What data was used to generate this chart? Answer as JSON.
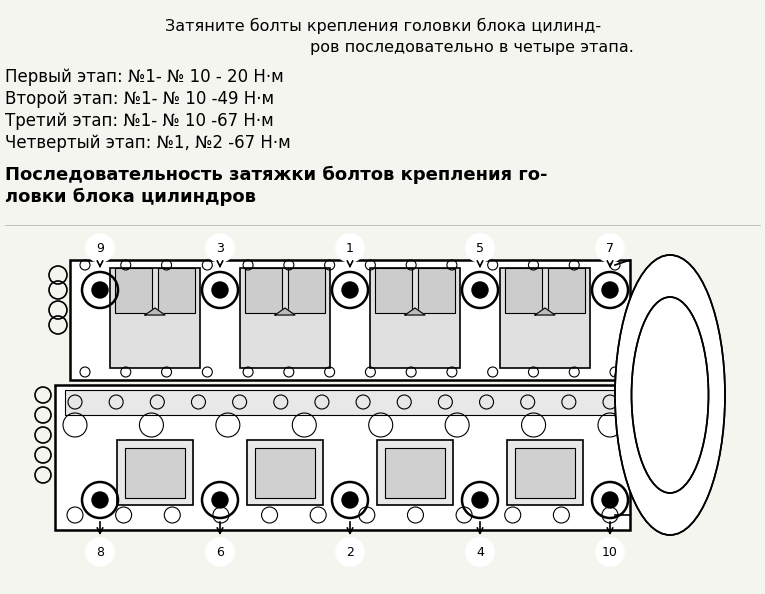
{
  "line1": "Затяните болты крепления головки блока цилинд-",
  "line2": "ров последовательно в четыре этапа.",
  "step1": "Первый этап: №1- № 10 - 20 Н·м",
  "step2": "Второй этап: №1- № 10 -49 Н·м",
  "step3": "Третий этап: №1- № 10 -67 Н·м",
  "step4": "Четвертый этап: №1, №2 -67 Н·м",
  "sub1": "Последовательность затяжки болтов крепления го-",
  "sub2": "ловки блока цилиндров",
  "top_nums": [
    "9",
    "3",
    "1",
    "5",
    "7"
  ],
  "bot_nums": [
    "8",
    "6",
    "2",
    "4",
    "10"
  ],
  "bg": "#f5f5f0"
}
